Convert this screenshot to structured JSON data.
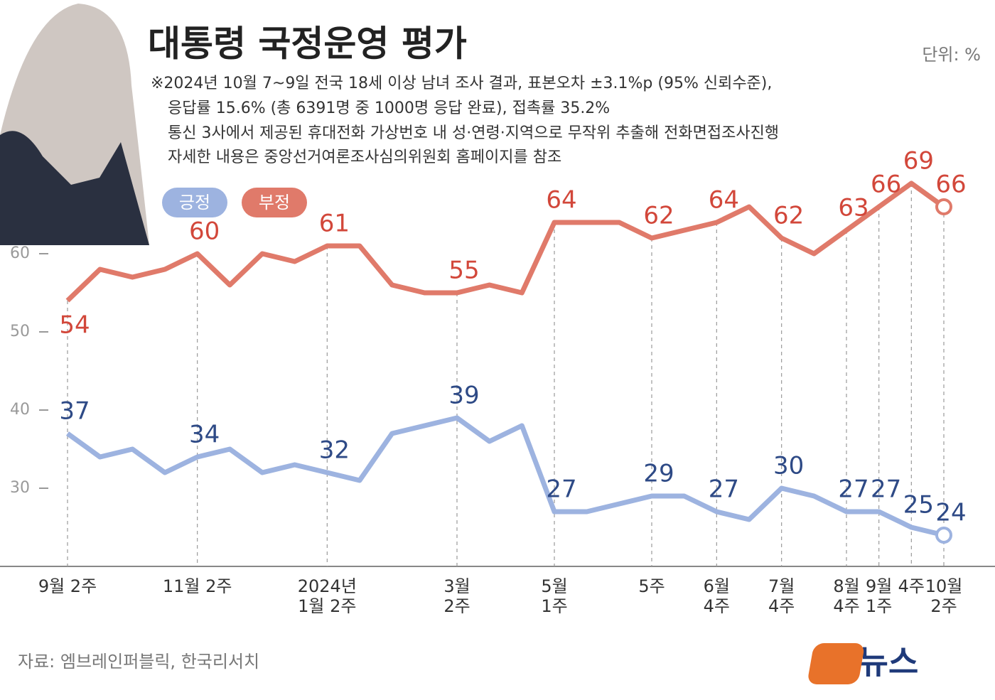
{
  "chart_data": {
    "type": "line",
    "title": "대통령 국정운영 평가",
    "unit": "단위: %",
    "notes": [
      "※2024년 10월 7~9일 전국 18세 이상 남녀 조사 결과, 표본오차 ±3.1%p (95% 신뢰수준),",
      "응답률 15.6% (총 6391명 중 1000명 응답 완료), 접촉률 35.2%",
      "통신 3사에서 제공된 휴대전화 가상번호 내 성·연령·지역으로 무작위 추출해 전화면접조사진행",
      "자세한 내용은 중앙선거여론조사심의위원회 홈페이지를 참조"
    ],
    "source": "자료: 엠브레인퍼블릭, 한국리서치",
    "brand": "뉴스",
    "categories": [
      [
        "9월 2주"
      ],
      null,
      null,
      null,
      [
        "11월 2주"
      ],
      null,
      null,
      null,
      [
        "2024년",
        "1월 2주"
      ],
      null,
      null,
      null,
      [
        "3월",
        "2주"
      ],
      null,
      null,
      [
        "5월",
        "1주"
      ],
      null,
      null,
      [
        "5주"
      ],
      null,
      [
        "6월",
        "4주"
      ],
      null,
      [
        "7월",
        "4주"
      ],
      null,
      [
        "8월",
        "4주"
      ],
      [
        "9월",
        "1주"
      ],
      [
        "4주"
      ],
      [
        "10월",
        "2주"
      ]
    ],
    "series": [
      {
        "name": "긍정",
        "color": "#9db3e0",
        "label_color": "#2e4a86",
        "values": [
          37,
          34,
          35,
          32,
          34,
          35,
          32,
          33,
          32,
          31,
          37,
          38,
          39,
          36,
          38,
          27,
          27,
          28,
          29,
          29,
          27,
          26,
          30,
          29,
          27,
          27,
          25,
          24
        ]
      },
      {
        "name": "부정",
        "color": "#e07a6a",
        "label_color": "#d2473a",
        "values": [
          54,
          58,
          57,
          58,
          60,
          56,
          60,
          59,
          61,
          61,
          56,
          55,
          55,
          56,
          55,
          64,
          64,
          64,
          62,
          63,
          64,
          66,
          62,
          60,
          63,
          66,
          69,
          66
        ]
      }
    ],
    "ylim": [
      20,
      70
    ],
    "yticks": [
      30,
      40,
      50,
      60
    ]
  }
}
